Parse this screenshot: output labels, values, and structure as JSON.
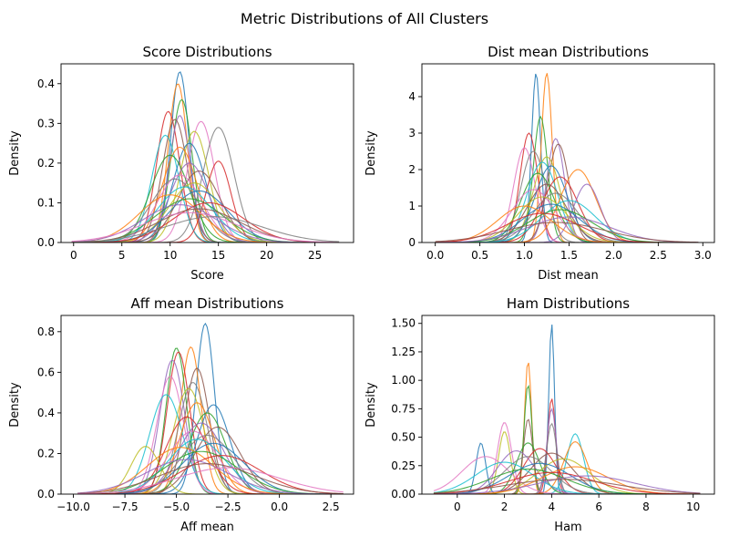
{
  "figure": {
    "suptitle": "Metric Distributions of All Clusters"
  },
  "palette": [
    "#1f77b4",
    "#ff7f0e",
    "#2ca02c",
    "#d62728",
    "#9467bd",
    "#8c564b",
    "#e377c2",
    "#7f7f7f",
    "#bcbd22",
    "#17becf"
  ],
  "chart_data": [
    {
      "type": "line",
      "title": "Score Distributions",
      "xlabel": "Score",
      "ylabel": "Density",
      "xlim": [
        -1.3,
        29
      ],
      "ylim": [
        0,
        0.45
      ],
      "xticks": [
        0,
        5,
        10,
        15,
        20,
        25
      ],
      "yticks": [
        0.0,
        0.1,
        0.2,
        0.3,
        0.4
      ],
      "xtick_labels": [
        "0",
        "5",
        "10",
        "15",
        "20",
        "25"
      ],
      "ytick_labels": [
        "0.0",
        "0.1",
        "0.2",
        "0.3",
        "0.4"
      ],
      "clip_to": [
        -0.2,
        27.5
      ],
      "grid": false,
      "legend": "none",
      "series": [
        {
          "center": 11.0,
          "sd": 0.95,
          "peak": 0.43
        },
        {
          "center": 10.8,
          "sd": 1.0,
          "peak": 0.4
        },
        {
          "center": 11.2,
          "sd": 1.1,
          "peak": 0.36
        },
        {
          "center": 9.8,
          "sd": 1.2,
          "peak": 0.33
        },
        {
          "center": 11.0,
          "sd": 1.1,
          "peak": 0.32
        },
        {
          "center": 10.5,
          "sd": 1.3,
          "peak": 0.31
        },
        {
          "center": 13.2,
          "sd": 1.4,
          "peak": 0.305
        },
        {
          "center": 15.0,
          "sd": 1.6,
          "peak": 0.29
        },
        {
          "center": 12.5,
          "sd": 1.5,
          "peak": 0.28
        },
        {
          "center": 9.5,
          "sd": 1.4,
          "peak": 0.27
        },
        {
          "center": 12.0,
          "sd": 1.7,
          "peak": 0.25
        },
        {
          "center": 11.0,
          "sd": 1.8,
          "peak": 0.24
        },
        {
          "center": 10.0,
          "sd": 2.0,
          "peak": 0.22
        },
        {
          "center": 15.0,
          "sd": 1.3,
          "peak": 0.205
        },
        {
          "center": 12.0,
          "sd": 2.0,
          "peak": 0.2
        },
        {
          "center": 13.0,
          "sd": 2.2,
          "peak": 0.18
        },
        {
          "center": 11.0,
          "sd": 2.3,
          "peak": 0.17
        },
        {
          "center": 10.5,
          "sd": 2.5,
          "peak": 0.16
        },
        {
          "center": 12.5,
          "sd": 2.6,
          "peak": 0.15
        },
        {
          "center": 11.5,
          "sd": 2.8,
          "peak": 0.14
        },
        {
          "center": 13.0,
          "sd": 3.0,
          "peak": 0.13
        },
        {
          "center": 10.0,
          "sd": 3.2,
          "peak": 0.12
        },
        {
          "center": 12.0,
          "sd": 3.5,
          "peak": 0.11
        },
        {
          "center": 14.0,
          "sd": 3.6,
          "peak": 0.1
        },
        {
          "center": 11.0,
          "sd": 3.8,
          "peak": 0.095
        },
        {
          "center": 13.0,
          "sd": 4.2,
          "peak": 0.085
        },
        {
          "center": 12.0,
          "sd": 4.8,
          "peak": 0.075
        },
        {
          "center": 14.5,
          "sd": 5.0,
          "peak": 0.065
        }
      ]
    },
    {
      "type": "line",
      "title": "Dist mean Distributions",
      "xlabel": "Dist mean",
      "ylabel": "Density",
      "xlim": [
        -0.15,
        3.13
      ],
      "ylim": [
        0,
        4.9
      ],
      "xticks": [
        0.0,
        0.5,
        1.0,
        1.5,
        2.0,
        2.5,
        3.0
      ],
      "yticks": [
        0,
        1,
        2,
        3,
        4
      ],
      "xtick_labels": [
        "0.0",
        "0.5",
        "1.0",
        "1.5",
        "2.0",
        "2.5",
        "3.0"
      ],
      "ytick_labels": [
        "0",
        "1",
        "2",
        "3",
        "4"
      ],
      "clip_to": [
        0.0,
        2.95
      ],
      "grid": false,
      "legend": "none",
      "series": [
        {
          "center": 1.13,
          "sd": 0.05,
          "peak": 4.65
        },
        {
          "center": 1.25,
          "sd": 0.06,
          "peak": 4.65
        },
        {
          "center": 1.18,
          "sd": 0.08,
          "peak": 3.45
        },
        {
          "center": 1.05,
          "sd": 0.1,
          "peak": 3.0
        },
        {
          "center": 1.35,
          "sd": 0.1,
          "peak": 2.85
        },
        {
          "center": 1.38,
          "sd": 0.12,
          "peak": 2.7
        },
        {
          "center": 1.0,
          "sd": 0.12,
          "peak": 2.6
        },
        {
          "center": 1.1,
          "sd": 0.14,
          "peak": 2.5
        },
        {
          "center": 1.25,
          "sd": 0.15,
          "peak": 2.35
        },
        {
          "center": 1.2,
          "sd": 0.17,
          "peak": 2.2
        },
        {
          "center": 1.3,
          "sd": 0.18,
          "peak": 2.1
        },
        {
          "center": 1.6,
          "sd": 0.2,
          "peak": 2.0
        },
        {
          "center": 1.15,
          "sd": 0.19,
          "peak": 1.9
        },
        {
          "center": 1.4,
          "sd": 0.2,
          "peak": 1.8
        },
        {
          "center": 1.7,
          "sd": 0.15,
          "peak": 1.6
        },
        {
          "center": 1.25,
          "sd": 0.22,
          "peak": 1.6
        },
        {
          "center": 1.1,
          "sd": 0.24,
          "peak": 1.45
        },
        {
          "center": 1.35,
          "sd": 0.25,
          "peak": 1.35
        },
        {
          "center": 1.2,
          "sd": 0.28,
          "peak": 1.25
        },
        {
          "center": 1.5,
          "sd": 0.3,
          "peak": 1.15
        },
        {
          "center": 1.3,
          "sd": 0.32,
          "peak": 1.05
        },
        {
          "center": 1.0,
          "sd": 0.3,
          "peak": 1.0
        },
        {
          "center": 1.4,
          "sd": 0.36,
          "peak": 0.9
        },
        {
          "center": 1.2,
          "sd": 0.4,
          "peak": 0.8
        },
        {
          "center": 1.5,
          "sd": 0.45,
          "peak": 0.7
        },
        {
          "center": 1.35,
          "sd": 0.55,
          "peak": 0.55
        }
      ]
    },
    {
      "type": "line",
      "title": "Aff mean Distributions",
      "xlabel": "Aff mean",
      "ylabel": "Density",
      "xlim": [
        -10.6,
        3.6
      ],
      "ylim": [
        0,
        0.88
      ],
      "xticks": [
        -10.0,
        -7.5,
        -5.0,
        -2.5,
        0.0,
        2.5
      ],
      "yticks": [
        0.0,
        0.2,
        0.4,
        0.6,
        0.8
      ],
      "xtick_labels": [
        "−10.0",
        "−7.5",
        "−5.0",
        "−2.5",
        "0.0",
        "2.5"
      ],
      "ytick_labels": [
        "0.0",
        "0.2",
        "0.4",
        "0.6",
        "0.8"
      ],
      "clip_to": [
        -9.8,
        3.1
      ],
      "grid": false,
      "legend": "none",
      "series": [
        {
          "center": -3.6,
          "sd": 0.45,
          "peak": 0.84
        },
        {
          "center": -4.3,
          "sd": 0.5,
          "peak": 0.725
        },
        {
          "center": -5.0,
          "sd": 0.5,
          "peak": 0.72
        },
        {
          "center": -4.9,
          "sd": 0.55,
          "peak": 0.7
        },
        {
          "center": -5.2,
          "sd": 0.6,
          "peak": 0.66
        },
        {
          "center": -4.0,
          "sd": 0.6,
          "peak": 0.62
        },
        {
          "center": -5.3,
          "sd": 0.65,
          "peak": 0.58
        },
        {
          "center": -4.2,
          "sd": 0.7,
          "peak": 0.55
        },
        {
          "center": -4.4,
          "sd": 0.75,
          "peak": 0.52
        },
        {
          "center": -5.5,
          "sd": 0.8,
          "peak": 0.49
        },
        {
          "center": -3.2,
          "sd": 0.8,
          "peak": 0.44
        },
        {
          "center": -4.0,
          "sd": 0.85,
          "peak": 0.45
        },
        {
          "center": -3.5,
          "sd": 0.9,
          "peak": 0.4
        },
        {
          "center": -4.5,
          "sd": 1.0,
          "peak": 0.38
        },
        {
          "center": -3.8,
          "sd": 1.1,
          "peak": 0.35
        },
        {
          "center": -3.0,
          "sd": 1.1,
          "peak": 0.33
        },
        {
          "center": -4.2,
          "sd": 1.2,
          "peak": 0.31
        },
        {
          "center": -3.5,
          "sd": 1.3,
          "peak": 0.29
        },
        {
          "center": -6.5,
          "sd": 0.7,
          "peak": 0.235
        },
        {
          "center": -4.0,
          "sd": 1.4,
          "peak": 0.27
        },
        {
          "center": -3.2,
          "sd": 1.5,
          "peak": 0.25
        },
        {
          "center": -4.8,
          "sd": 1.6,
          "peak": 0.23
        },
        {
          "center": -3.8,
          "sd": 1.8,
          "peak": 0.21
        },
        {
          "center": -2.8,
          "sd": 1.9,
          "peak": 0.19
        },
        {
          "center": -4.5,
          "sd": 2.0,
          "peak": 0.17
        },
        {
          "center": -3.5,
          "sd": 2.3,
          "peak": 0.15
        },
        {
          "center": -2.5,
          "sd": 2.5,
          "peak": 0.13
        }
      ]
    },
    {
      "type": "line",
      "title": "Ham Distributions",
      "xlabel": "Ham",
      "ylabel": "Density",
      "xlim": [
        -1.5,
        10.9
      ],
      "ylim": [
        0,
        1.57
      ],
      "xticks": [
        0,
        2,
        4,
        6,
        8,
        10
      ],
      "yticks": [
        0.0,
        0.25,
        0.5,
        0.75,
        1.0,
        1.25,
        1.5
      ],
      "xtick_labels": [
        "0",
        "2",
        "4",
        "6",
        "8",
        "10"
      ],
      "ytick_labels": [
        "0.00",
        "0.25",
        "0.50",
        "0.75",
        "1.00",
        "1.25",
        "1.50"
      ],
      "clip_to": [
        -1.0,
        10.3
      ],
      "grid": false,
      "legend": "none",
      "series": [
        {
          "center": 4.0,
          "sd": 0.12,
          "peak": 1.5
        },
        {
          "center": 3.0,
          "sd": 0.15,
          "peak": 1.17
        },
        {
          "center": 3.0,
          "sd": 0.17,
          "peak": 0.96
        },
        {
          "center": 4.0,
          "sd": 0.17,
          "peak": 0.84
        },
        {
          "center": 4.0,
          "sd": 0.2,
          "peak": 0.75
        },
        {
          "center": 3.0,
          "sd": 0.2,
          "peak": 0.66
        },
        {
          "center": 2.0,
          "sd": 0.3,
          "peak": 0.63
        },
        {
          "center": 4.0,
          "sd": 0.22,
          "peak": 0.62
        },
        {
          "center": 2.0,
          "sd": 0.25,
          "peak": 0.55
        },
        {
          "center": 5.0,
          "sd": 0.35,
          "peak": 0.53
        },
        {
          "center": 1.0,
          "sd": 0.2,
          "peak": 0.45
        },
        {
          "center": 5.0,
          "sd": 0.5,
          "peak": 0.46
        },
        {
          "center": 3.0,
          "sd": 0.5,
          "peak": 0.45
        },
        {
          "center": 3.5,
          "sd": 0.7,
          "peak": 0.4
        },
        {
          "center": 2.5,
          "sd": 0.8,
          "peak": 0.38
        },
        {
          "center": 4.0,
          "sd": 0.9,
          "peak": 0.36
        },
        {
          "center": 1.2,
          "sd": 1.0,
          "peak": 0.33
        },
        {
          "center": 3.0,
          "sd": 1.0,
          "peak": 0.33
        },
        {
          "center": 4.5,
          "sd": 1.1,
          "peak": 0.31
        },
        {
          "center": 2.0,
          "sd": 1.2,
          "peak": 0.28
        },
        {
          "center": 3.5,
          "sd": 1.3,
          "peak": 0.27
        },
        {
          "center": 5.0,
          "sd": 1.4,
          "peak": 0.24
        },
        {
          "center": 3.0,
          "sd": 1.6,
          "peak": 0.22
        },
        {
          "center": 4.0,
          "sd": 1.8,
          "peak": 0.19
        },
        {
          "center": 5.5,
          "sd": 2.0,
          "peak": 0.16
        },
        {
          "center": 4.5,
          "sd": 2.4,
          "peak": 0.13
        }
      ]
    }
  ]
}
